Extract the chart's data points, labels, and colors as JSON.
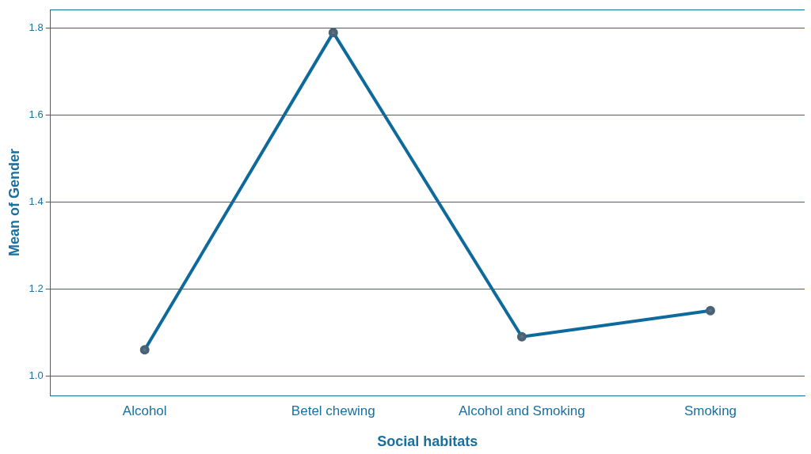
{
  "chart_data": {
    "type": "line",
    "xlabel": "Social habitats",
    "ylabel": "Mean of Gender",
    "categories": [
      "Alcohol",
      "Betel chewing",
      "Alcohol and Smoking",
      "Smoking"
    ],
    "series": [
      {
        "color": "#0e6a9c",
        "values": [
          1.06,
          1.79,
          1.09,
          1.15
        ]
      }
    ],
    "ylim": [
      0.955,
      1.843
    ],
    "yticks": [
      {
        "value": 1.0,
        "label": "1.0"
      },
      {
        "value": 1.2,
        "label": "1.2"
      },
      {
        "value": 1.4,
        "label": "1.4"
      },
      {
        "value": 1.6,
        "label": "1.6"
      },
      {
        "value": 1.8,
        "label": "1.8"
      }
    ],
    "grid": "y",
    "marker": "circle",
    "line_style": "solid",
    "legend": false
  }
}
